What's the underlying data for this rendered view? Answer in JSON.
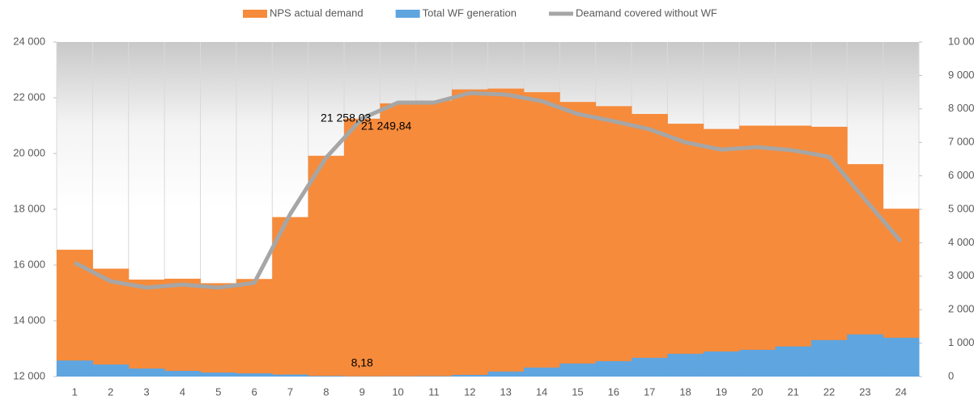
{
  "chart_data": {
    "type": "bar",
    "categories": [
      1,
      2,
      3,
      4,
      5,
      6,
      7,
      8,
      9,
      10,
      11,
      12,
      13,
      14,
      15,
      16,
      17,
      18,
      19,
      20,
      21,
      22,
      23,
      24
    ],
    "ylim": [
      12000,
      24000
    ],
    "yticks": [
      {
        "value": 12000,
        "label": "12 000"
      },
      {
        "value": 14000,
        "label": "14 000"
      },
      {
        "value": 16000,
        "label": "16 000"
      },
      {
        "value": 18000,
        "label": "18 000"
      },
      {
        "value": 20000,
        "label": "20 000"
      },
      {
        "value": 22000,
        "label": "22 000"
      },
      {
        "value": 24000,
        "label": "24 000"
      }
    ],
    "y2lim": [
      0,
      10000
    ],
    "y2ticks": [
      0,
      {
        "value": 1000,
        "label": "1 000"
      },
      {
        "value": 2000,
        "label": "2 000"
      },
      {
        "value": 3000,
        "label": "3 000"
      },
      {
        "value": 4000,
        "label": "4 000"
      },
      {
        "value": 5000,
        "label": "5 000"
      },
      {
        "value": 6000,
        "label": "6 000"
      },
      {
        "value": 7000,
        "label": "7 000"
      },
      {
        "value": 8000,
        "label": "8 000"
      },
      {
        "value": 9000,
        "label": "9 000"
      },
      {
        "value": 10000,
        "label": "10 000"
      }
    ],
    "series": [
      {
        "name": "NPS actual demand",
        "color": "#f68b3b",
        "kind": "bar",
        "values": [
          16550,
          15870,
          15480,
          15510,
          15350,
          15500,
          17720,
          19920,
          21249.84,
          21800,
          21900,
          22300,
          22330,
          22200,
          21850,
          21700,
          21420,
          21070,
          20880,
          21000,
          21000,
          20960,
          19620,
          18020
        ],
        "value_labels": [
          null,
          null,
          null,
          null,
          null,
          null,
          null,
          null,
          "21 249,84",
          null,
          null,
          null,
          null,
          null,
          null,
          null,
          null,
          null,
          null,
          null,
          null,
          null,
          null,
          null
        ]
      },
      {
        "name": "Total WF generation",
        "color": "#5fa5e0",
        "kind": "bar",
        "axis": "y2",
        "values": [
          480,
          360,
          240,
          170,
          120,
          95,
          60,
          20,
          8.18,
          10,
          15,
          50,
          150,
          270,
          390,
          460,
          560,
          680,
          750,
          800,
          900,
          1090,
          1260,
          1160
        ],
        "value_labels": [
          null,
          null,
          null,
          null,
          null,
          null,
          null,
          null,
          "8,18",
          null,
          null,
          null,
          null,
          null,
          null,
          null,
          null,
          null,
          null,
          null,
          null,
          null,
          null,
          null
        ]
      },
      {
        "name": "Deamand covered without WF",
        "color": "#a6a6a6",
        "kind": "line",
        "values": [
          16085,
          15420,
          15190,
          15300,
          15190,
          15360,
          17830,
          19855,
          21258.03,
          21826,
          21826,
          22170,
          22115,
          21880,
          21420,
          21160,
          20870,
          20400,
          20140,
          20230,
          20115,
          19880,
          18350,
          16840
        ],
        "value_labels": [
          null,
          null,
          null,
          null,
          null,
          null,
          null,
          null,
          "21 258,03",
          null,
          null,
          null,
          null,
          null,
          null,
          null,
          null,
          null,
          null,
          null,
          null,
          null,
          null,
          null
        ]
      }
    ]
  }
}
